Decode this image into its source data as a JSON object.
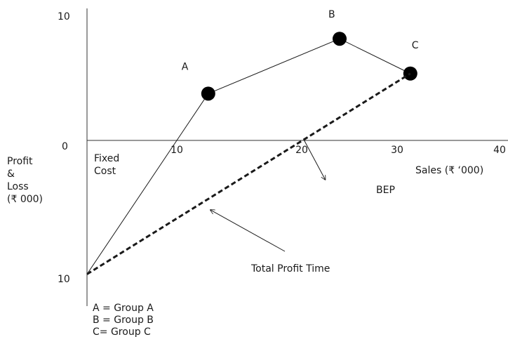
{
  "chart_data": {
    "type": "line",
    "xlabel": "Sales (₹ ‘000)",
    "ylabel_lines": [
      "Profit",
      "&",
      "Loss",
      "(₹ 000)"
    ],
    "y_tick_labels": [
      "10",
      "0",
      "10"
    ],
    "y_ticks": [
      10,
      0,
      -10
    ],
    "x_ticks": [
      10,
      20,
      30,
      40
    ],
    "x_tick_labels": [
      "10",
      "20",
      "30",
      "40"
    ],
    "xlim": [
      0,
      40.5
    ],
    "ylim": [
      -13,
      10
    ],
    "fixed_cost_label": [
      "Fixed",
      "Cost"
    ],
    "series": [
      {
        "style": "solid",
        "points": [
          {
            "x": 0,
            "y": -10
          },
          {
            "x": 12,
            "y": 3.5,
            "label": "A"
          },
          {
            "x": 25,
            "y": 7.6,
            "label": "B"
          },
          {
            "x": 32,
            "y": 5,
            "label": "C"
          }
        ]
      },
      {
        "style": "dashed",
        "points": [
          {
            "x": 0,
            "y": -10
          },
          {
            "x": 32,
            "y": 5
          }
        ]
      }
    ],
    "annotations": [
      {
        "text": "BEP",
        "point": {
          "x": 21.5,
          "y": 0
        }
      },
      {
        "text": "Total Profit Time",
        "point": {
          "x": 12,
          "y": -5.3
        }
      }
    ],
    "legend_lines": [
      "A = Group A",
      "B = Group B",
      "C= Group C"
    ]
  }
}
